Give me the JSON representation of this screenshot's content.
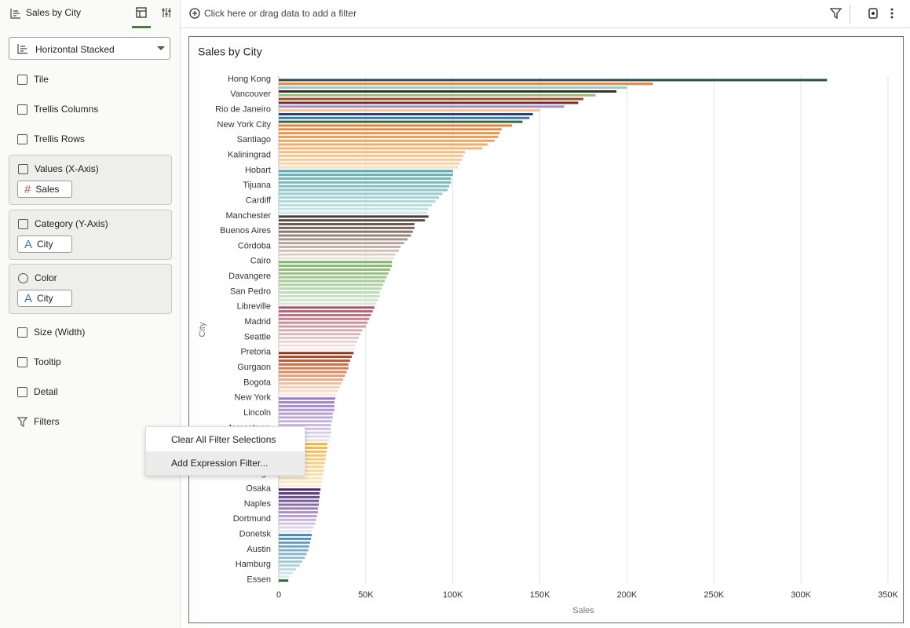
{
  "header": {
    "title": "Sales by City"
  },
  "filter_bar": {
    "placeholder": "Click here or drag data to add a filter"
  },
  "panel": {
    "chart_type": "Horizontal Stacked",
    "sections": [
      {
        "label": "Tile"
      },
      {
        "label": "Trellis Columns"
      },
      {
        "label": "Trellis Rows"
      },
      {
        "label": "Values (X-Axis)",
        "chips": [
          "Sales"
        ]
      },
      {
        "label": "Category (Y-Axis)",
        "chips": [
          "City"
        ]
      },
      {
        "label": "Color",
        "chips": [
          "City"
        ]
      },
      {
        "label": "Size (Width)"
      },
      {
        "label": "Tooltip"
      },
      {
        "label": "Detail"
      },
      {
        "label": "Filters"
      }
    ]
  },
  "context_menu": {
    "items": [
      "Clear All Filter Selections",
      "Add Expression Filter..."
    ]
  },
  "chart_data": {
    "type": "bar",
    "orientation": "horizontal",
    "title": "Sales by City",
    "x_label": "Sales",
    "y_label": "City",
    "categories": [
      "Hong Kong",
      null,
      null,
      null,
      "Vancouver",
      null,
      null,
      null,
      "Rio de Janeiro",
      null,
      null,
      null,
      "New York City",
      null,
      null,
      null,
      "Santiago",
      null,
      null,
      null,
      "Kaliningrad",
      null,
      null,
      null,
      "Hobart",
      null,
      null,
      null,
      "Tijuana",
      null,
      null,
      null,
      "Cardiff",
      null,
      null,
      null,
      "Manchester",
      null,
      null,
      null,
      "Buenos Aires",
      null,
      null,
      null,
      "Córdoba",
      null,
      null,
      null,
      "Cairo",
      null,
      null,
      null,
      "Davangere",
      null,
      null,
      null,
      "San Pedro",
      null,
      null,
      null,
      "Libreville",
      null,
      null,
      null,
      "Madrid",
      null,
      null,
      null,
      "Seattle",
      null,
      null,
      null,
      "Pretoria",
      null,
      null,
      null,
      "Gurgaon",
      null,
      null,
      null,
      "Bogota",
      null,
      null,
      null,
      "New York",
      null,
      null,
      null,
      "Lincoln",
      null,
      null,
      null,
      "Jamestown",
      null,
      null,
      null,
      null,
      null,
      null,
      null,
      null,
      null,
      null,
      null,
      "Raleigh",
      null,
      null,
      null,
      "Osaka",
      null,
      null,
      null,
      "Naples",
      null,
      null,
      null,
      "Dortmund",
      null,
      null,
      null,
      "Donetsk",
      null,
      null,
      null,
      "Austin",
      null,
      null,
      null,
      "Hamburg",
      null,
      null,
      null,
      "Essen"
    ],
    "values": [
      315000,
      215000,
      200000,
      194000,
      182000,
      175000,
      172000,
      164000,
      150000,
      146000,
      144000,
      140000,
      134000,
      128000,
      127000,
      126000,
      124000,
      120000,
      117000,
      107000,
      106000,
      105000,
      104000,
      103000,
      100000,
      100000,
      99000,
      99000,
      98000,
      97000,
      94000,
      92000,
      90000,
      88000,
      86000,
      85000,
      86000,
      84000,
      78000,
      78000,
      77000,
      76000,
      74000,
      72000,
      70000,
      69000,
      67000,
      66000,
      65000,
      65000,
      64000,
      63000,
      62000,
      61000,
      60000,
      59000,
      58000,
      58000,
      57000,
      56000,
      55000,
      54000,
      53000,
      52000,
      51000,
      50000,
      48000,
      47000,
      46000,
      45000,
      44000,
      44000,
      43000,
      42000,
      41000,
      40000,
      40000,
      39000,
      38000,
      37000,
      36000,
      35000,
      34000,
      33000,
      32500,
      32000,
      32000,
      32000,
      31000,
      31000,
      30500,
      30000,
      30000,
      30000,
      29500,
      29000,
      28000,
      28000,
      27500,
      27000,
      27000,
      26500,
      26000,
      26000,
      25500,
      25000,
      25000,
      24500,
      24000,
      23500,
      23500,
      23000,
      23000,
      22500,
      22500,
      22000,
      21500,
      21000,
      20000,
      19000,
      19000,
      18500,
      18000,
      17500,
      17000,
      16000,
      15000,
      13500,
      12000,
      10000,
      8000,
      6000,
      5500
    ],
    "colors": [
      "#2a4d55",
      "#e8843a",
      "#8ed0c4",
      "#3e2c28",
      "#8fc27a",
      "#9c4a2e",
      "#7a2a1e",
      "#a48ad0",
      "#f8c48c",
      "#2a3f6e",
      "#3f78b0",
      "#2a6a4a",
      "#e8843a",
      "#ea8c42",
      "#ec944b",
      "#ee9c55",
      "#f0a45f",
      "#f2ac69",
      "#f4b474",
      "#f5bc80",
      "#f7c48c",
      "#f8cc99",
      "#fad4a6",
      "#fcdcb4",
      "#5aa9b0",
      "#64afb5",
      "#6eb5ba",
      "#78bbbf",
      "#82c1c4",
      "#8cc7c9",
      "#96cdce",
      "#a0d3d3",
      "#aad9d8",
      "#b4dfdd",
      "#bee5e2",
      "#c8ebe7",
      "#4a3c38",
      "#5a4a45",
      "#6a5852",
      "#7a675f",
      "#8a766d",
      "#9a857b",
      "#aa9489",
      "#b9a398",
      "#c7b2a8",
      "#d4c1b8",
      "#e0d0c8",
      "#ebdfd8",
      "#7fb46a",
      "#87b973",
      "#8fbe7c",
      "#97c385",
      "#9fc88e",
      "#a7cd98",
      "#afd2a2",
      "#b7d7ac",
      "#bfdcb6",
      "#c7e1c0",
      "#cfe6ca",
      "#d7ebd4",
      "#a8566e",
      "#b16479",
      "#ba7284",
      "#c2808f",
      "#ca8e9a",
      "#d19ca6",
      "#d8aab2",
      "#dfb8bf",
      "#e5c5cb",
      "#ebd2d7",
      "#f0dfe2",
      "#f5ebed",
      "#8a3a1e",
      "#a44a28",
      "#be5a33",
      "#cc6a40",
      "#d67a50",
      "#df8a62",
      "#e59b75",
      "#ebac89",
      "#f0bd9e",
      "#f4cdb3",
      "#f8dcc8",
      "#fbeadc",
      "#9a7cc6",
      "#a184ca",
      "#a88dce",
      "#af96d2",
      "#b69fd6",
      "#bda8da",
      "#c4b1de",
      "#cbbae2",
      "#d2c3e6",
      "#d9cdea",
      "#e0d7ee",
      "#e7e1f2",
      "#f5b342",
      "#f6b94f",
      "#f7bf5c",
      "#f8c569",
      "#f9cb76",
      "#f9d083",
      "#fad590",
      "#fbda9d",
      "#fcdfaa",
      "#fce4b7",
      "#fde9c4",
      "#fdeed1",
      "#4b2a6e",
      "#5a3a7e",
      "#6a4b8e",
      "#7a5c9c",
      "#8a6daa",
      "#9a7eb7",
      "#a98fc3",
      "#b8a0ce",
      "#c6b1d8",
      "#d3c2e1",
      "#dfd3ea",
      "#eae3f2",
      "#4a8ab0",
      "#5693b6",
      "#629cbc",
      "#6ea5c2",
      "#7baec8",
      "#88b7ce",
      "#95c0d4",
      "#a2c9da",
      "#afd2e0",
      "#bcdbe6",
      "#c9e4ec",
      "#d6edf2",
      "#2e6e3e"
    ],
    "xlim": [
      0,
      350000
    ],
    "xticks": [
      0,
      {
        "value": 50000,
        "label": "50K"
      },
      {
        "value": 100000,
        "label": "100K"
      },
      {
        "value": 150000,
        "label": "150K"
      },
      {
        "value": 200000,
        "label": "200K"
      },
      {
        "value": 250000,
        "label": "250K"
      },
      {
        "value": 300000,
        "label": "300K"
      },
      {
        "value": 350000,
        "label": "350K"
      }
    ],
    "grid": true
  }
}
